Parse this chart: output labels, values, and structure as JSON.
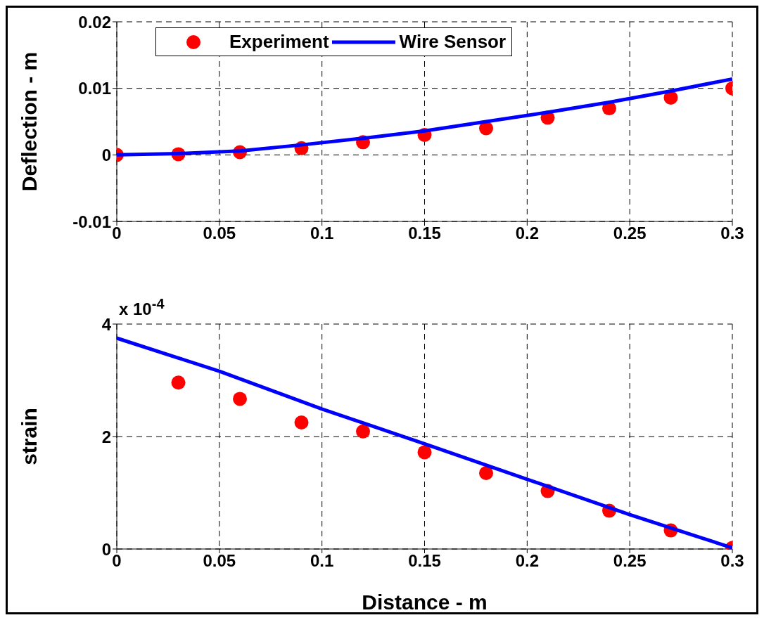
{
  "chart_data": [
    {
      "type": "line",
      "ylabel": "Deflection - m",
      "xlim": [
        0,
        0.3
      ],
      "xticks": [
        0,
        0.05,
        0.1,
        0.15,
        0.2,
        0.25,
        0.3
      ],
      "ylim": [
        -0.01,
        0.02
      ],
      "yticks": [
        -0.01,
        0,
        0.01,
        0.02
      ],
      "grid": true,
      "legend": "top",
      "series": [
        {
          "name": "Experiment",
          "type": "scatter",
          "marker": "circle",
          "color": "#ff0000",
          "x": [
            0,
            0.03,
            0.06,
            0.09,
            0.12,
            0.15,
            0.18,
            0.21,
            0.24,
            0.27,
            0.3
          ],
          "values": [
            0,
            0.0001,
            0.0004,
            0.001,
            0.0019,
            0.003,
            0.004,
            0.0056,
            0.007,
            0.0086,
            0.01
          ]
        },
        {
          "name": "Wire Sensor",
          "marker": "none",
          "color": "#0000ff",
          "x": [
            0,
            0.03,
            0.06,
            0.09,
            0.12,
            0.15,
            0.18,
            0.21,
            0.24,
            0.27,
            0.3
          ],
          "values": [
            0,
            0.0002,
            0.0006,
            0.0015,
            0.0025,
            0.0036,
            0.005,
            0.0064,
            0.0079,
            0.0096,
            0.0114
          ]
        }
      ]
    },
    {
      "type": "line",
      "xlabel": "Distance - m",
      "ylabel": "strain",
      "annotations": [
        "x 10$^{-4}$"
      ],
      "xlim": [
        0,
        0.3
      ],
      "xticks": [
        0,
        0.05,
        0.1,
        0.15,
        0.2,
        0.25,
        0.3
      ],
      "ylim": [
        0,
        4
      ],
      "yticks": [
        0,
        2,
        4
      ],
      "grid": true,
      "legend": false,
      "series": [
        {
          "type": "scatter",
          "marker": "circle",
          "color": "#ff0000",
          "x": [
            0.03,
            0.06,
            0.09,
            0.12,
            0.15,
            0.18,
            0.21,
            0.24,
            0.27,
            0.3
          ],
          "values": [
            2.96,
            2.67,
            2.25,
            2.09,
            1.72,
            1.35,
            1.03,
            0.68,
            0.33,
            0.02
          ]
        },
        {
          "marker": "none",
          "color": "#0000ff",
          "x": [
            0,
            0.05,
            0.1,
            0.15,
            0.2,
            0.25,
            0.3
          ],
          "values": [
            3.75,
            3.16,
            2.49,
            1.87,
            1.24,
            0.61,
            0.02
          ]
        }
      ]
    }
  ]
}
